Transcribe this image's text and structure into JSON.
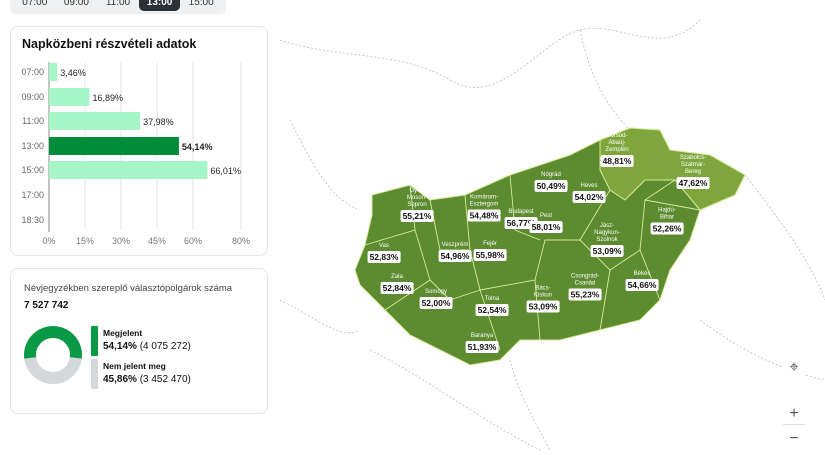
{
  "time_tabs": [
    {
      "label": "07:00"
    },
    {
      "label": "09:00"
    },
    {
      "label": "11:00"
    },
    {
      "label": "13:00",
      "active": true
    },
    {
      "label": "15:00"
    }
  ],
  "turnout_card": {
    "title": "Napközbeni részvételi adatok"
  },
  "chart_data": {
    "type": "bar",
    "orientation": "horizontal",
    "categories": [
      "07:00",
      "09:00",
      "11:00",
      "13:00",
      "15:00",
      "17:00",
      "18:30"
    ],
    "values": [
      3.46,
      16.89,
      37.98,
      54.14,
      66.01,
      null,
      null
    ],
    "value_labels": [
      "3,46%",
      "16,89%",
      "37,98%",
      "54,14%",
      "66,01%",
      "",
      ""
    ],
    "highlighted": "13:00",
    "xlim": [
      0,
      80
    ],
    "xticks": [
      0,
      15,
      30,
      45,
      60,
      80
    ],
    "xtick_labels": [
      "0%",
      "15%",
      "30%",
      "45%",
      "60%",
      "80%"
    ],
    "grid": true,
    "colors": {
      "default": "#a6f5c8",
      "highlight": "#008c3a"
    }
  },
  "voters_card": {
    "subtitle": "Névjegyzékben szereplő választópolgárok száma",
    "total": "7 527 742",
    "legend": [
      {
        "label": "Megjelent",
        "percent": "54,14%",
        "count": "(4 075 272)",
        "value": 54.14,
        "color": "#0a9a45"
      },
      {
        "label": "Nem jelent meg",
        "percent": "45,86%",
        "count": "(3 452 470)",
        "value": 45.86,
        "color": "#d5d8db"
      }
    ]
  },
  "map": {
    "colors": {
      "main": "#5d8b30",
      "light": "#7ea63c"
    },
    "counties": [
      {
        "name": "Borsod-\nAbaúj-\nZemplén",
        "value": "48,81%"
      },
      {
        "name": "Szabolcs-\nSzatmár-\nBereg",
        "value": "47,62%"
      },
      {
        "name": "Nógrád",
        "value": "50,49%"
      },
      {
        "name": "Heves",
        "value": "54,02%"
      },
      {
        "name": "Győr-\nMoson-\nSopron",
        "value": "55,21%"
      },
      {
        "name": "Komárom-\nEsztergom",
        "value": "54,48%"
      },
      {
        "name": "Budapest",
        "value": "56,77%"
      },
      {
        "name": "Pest",
        "value": "58,01%"
      },
      {
        "name": "Hajdú-\nBihar",
        "value": "52,26%"
      },
      {
        "name": "Jász-\nNagykun-\nSzolnok",
        "value": "53,09%"
      },
      {
        "name": "Vas",
        "value": "52,83%"
      },
      {
        "name": "Veszprém",
        "value": "54,96%"
      },
      {
        "name": "Fejér",
        "value": "55,98%"
      },
      {
        "name": "Zala",
        "value": "52,84%"
      },
      {
        "name": "Békés",
        "value": "54,66%"
      },
      {
        "name": "Csongrád-\nCsanád",
        "value": "55,23%"
      },
      {
        "name": "Somogy",
        "value": "52,00%"
      },
      {
        "name": "Tolna",
        "value": "52,54%"
      },
      {
        "name": "Bács-\nKiskun",
        "value": "53,09%"
      },
      {
        "name": "Baranya",
        "value": "51,93%"
      }
    ],
    "controls": {
      "recenter": "⌖",
      "zoom_in": "+",
      "zoom_out": "−"
    }
  }
}
